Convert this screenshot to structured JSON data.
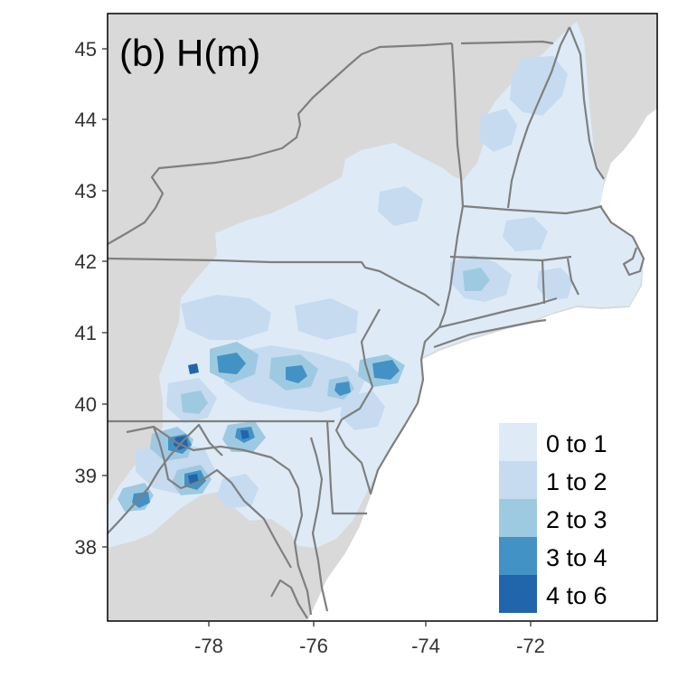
{
  "panel_title": "(b) H(m)",
  "x_axis": {
    "ticks": [
      "-78",
      "-76",
      "-74",
      "-72"
    ]
  },
  "y_axis": {
    "ticks": [
      "45",
      "44",
      "43",
      "42",
      "41",
      "40",
      "39",
      "38"
    ]
  },
  "legend": {
    "items": [
      {
        "label": "0 to 1",
        "color": "#deebf7"
      },
      {
        "label": "1 to 2",
        "color": "#c6dbef"
      },
      {
        "label": "2 to 3",
        "color": "#9ecae1"
      },
      {
        "label": "3 to 4",
        "color": "#4292c6"
      },
      {
        "label": "4 to 6",
        "color": "#2166ac"
      }
    ]
  },
  "colors": {
    "land_background": "#d9d9d9",
    "ocean": "#ffffff",
    "state_border": "#7f7f7f"
  }
}
